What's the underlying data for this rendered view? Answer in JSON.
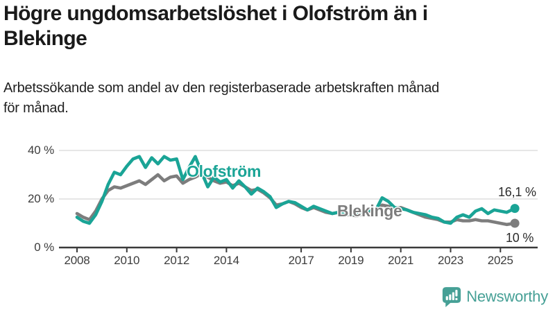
{
  "title": {
    "line1": "Högre ungdomsarbetslöshet i Olofström än i",
    "line2": "Blekinge"
  },
  "subtitle": {
    "line1": "Arbetssökande som andel av den registerbaserade arbetskraften månad",
    "line2": "för månad."
  },
  "chart_data": {
    "type": "line",
    "title": "Högre ungdomsarbetslöshet i Olofström än i Blekinge",
    "subtitle": "Arbetssökande som andel av den registerbaserade arbetskraften månad för månad.",
    "xlabel": "",
    "ylabel": "",
    "ylim": [
      0,
      42
    ],
    "xlim": [
      2007.6,
      2026.3
    ],
    "grid": "horizontal",
    "legend": "inline-labels",
    "x": [
      2008,
      2008.25,
      2008.5,
      2008.75,
      2009,
      2009.25,
      2009.5,
      2009.75,
      2010,
      2010.25,
      2010.5,
      2010.75,
      2011,
      2011.25,
      2011.5,
      2011.75,
      2012,
      2012.25,
      2012.5,
      2012.75,
      2013,
      2013.25,
      2013.5,
      2013.75,
      2014,
      2014.25,
      2014.5,
      2014.75,
      2015,
      2015.25,
      2015.5,
      2015.75,
      2016,
      2016.25,
      2016.5,
      2016.75,
      2017,
      2017.25,
      2017.5,
      2017.75,
      2018,
      2018.25,
      2018.5,
      2018.75,
      2019,
      2019.25,
      2019.5,
      2019.75,
      2020,
      2020.25,
      2020.5,
      2020.75,
      2021,
      2021.25,
      2021.5,
      2021.75,
      2022,
      2022.25,
      2022.5,
      2022.75,
      2023,
      2023.25,
      2023.5,
      2023.75,
      2024,
      2024.25,
      2024.5,
      2024.75,
      2025,
      2025.25,
      2025.58
    ],
    "series": [
      {
        "name": "Olofström",
        "color": "#1aa496",
        "end_label": "16,1 %",
        "end_value": 16.1,
        "values": [
          12.5,
          10.8,
          10,
          13.5,
          19,
          26,
          31,
          30,
          33.5,
          36.5,
          37.5,
          33,
          37,
          34.5,
          37.5,
          36,
          36.5,
          28,
          33,
          37.5,
          31,
          25,
          29,
          27,
          28,
          24.5,
          27.5,
          25,
          22,
          24.5,
          23,
          21,
          16.5,
          18,
          19,
          18.5,
          17,
          15.5,
          17,
          16,
          15,
          14,
          14.5,
          13.5,
          14,
          13.5,
          14,
          15.5,
          15.5,
          20.5,
          19,
          16.5,
          16,
          15.5,
          14.5,
          14,
          13.5,
          12.5,
          12,
          10.5,
          10,
          12.5,
          13.5,
          12.5,
          15,
          16,
          14,
          15.5,
          15,
          14.5,
          16.1
        ]
      },
      {
        "name": "Blekinge",
        "color": "#7d7d7d",
        "end_label": "10 %",
        "end_value": 10,
        "values": [
          14,
          12.5,
          11.5,
          15,
          20,
          23.5,
          25,
          24.5,
          25.5,
          26.5,
          27.5,
          26,
          28,
          30,
          27.5,
          29,
          29.5,
          26.5,
          28,
          29,
          30.5,
          29,
          27.5,
          26.5,
          27,
          25.5,
          26.5,
          25,
          23.5,
          24,
          22.5,
          20.5,
          17.5,
          18,
          19,
          18,
          16.5,
          15.5,
          16.5,
          15.5,
          14.5,
          14,
          14.5,
          13.5,
          13.5,
          13,
          14,
          15,
          15,
          17.5,
          17,
          16,
          16.5,
          15.5,
          14.5,
          13.5,
          12.5,
          12,
          11.5,
          10.5,
          10.5,
          11.5,
          11,
          11,
          11.5,
          11,
          11,
          10.5,
          10,
          9.5,
          10
        ]
      }
    ],
    "x_ticks": [
      {
        "value": 2008,
        "label": "2008"
      },
      {
        "value": 2010,
        "label": "2010"
      },
      {
        "value": 2012,
        "label": "2012"
      },
      {
        "value": 2014,
        "label": "2014"
      },
      {
        "value": 2017,
        "label": "2017"
      },
      {
        "value": 2019,
        "label": "2019"
      },
      {
        "value": 2021,
        "label": "2021"
      },
      {
        "value": 2023,
        "label": "2023"
      },
      {
        "value": 2025,
        "label": "2025"
      }
    ],
    "y_ticks": [
      {
        "value": 0,
        "label": "0 %"
      },
      {
        "value": 20,
        "label": "20 %"
      },
      {
        "value": 40,
        "label": "40 %"
      }
    ]
  },
  "colors": {
    "olofstrom": "#1aa496",
    "blekinge": "#7d7d7d",
    "axis": "#3a3a3a",
    "gridline": "#d8d8d8",
    "brand": "#46a096"
  },
  "branding": {
    "logo_text": "Newsworthy"
  }
}
